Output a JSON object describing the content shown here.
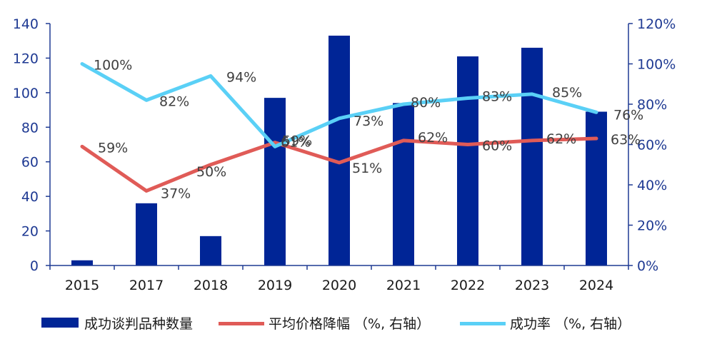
{
  "chart_data": {
    "type": "bar",
    "categories": [
      "2015",
      "2017",
      "2018",
      "2019",
      "2020",
      "2021",
      "2022",
      "2023",
      "2024"
    ],
    "series": [
      {
        "name": "成功谈判品种数量",
        "type": "bar",
        "axis": "left",
        "values": [
          3,
          36,
          17,
          97,
          133,
          94,
          121,
          126,
          89
        ]
      },
      {
        "name": "平均价格降幅 （%, 右轴）",
        "type": "line",
        "axis": "right",
        "values": [
          59,
          37,
          50,
          61,
          51,
          62,
          60,
          62,
          63
        ],
        "labels": [
          "59%",
          "37%",
          "50%",
          "61%",
          "51%",
          "62%",
          "60%",
          "62%",
          "63%"
        ]
      },
      {
        "name": "成功率 （%, 右轴）",
        "type": "line",
        "axis": "right",
        "values": [
          100,
          82,
          94,
          59,
          73,
          80,
          83,
          85,
          76
        ],
        "labels": [
          "100%",
          "82%",
          "94%",
          "59%",
          "73%",
          "80%",
          "83%",
          "85%",
          "76%"
        ]
      }
    ],
    "y_left": {
      "ylim": [
        0,
        140
      ],
      "ticks": [
        "0",
        "20",
        "40",
        "60",
        "80",
        "100",
        "120",
        "140"
      ]
    },
    "y_right": {
      "ylim": [
        0,
        120
      ],
      "ticks": [
        "0%",
        "20%",
        "40%",
        "60%",
        "80%",
        "100%",
        "120%"
      ]
    },
    "grid": false,
    "legend": "bottom",
    "colors": {
      "bar": "#002596",
      "price_line": "#e05b57",
      "rate_line": "#5ad0f6",
      "axis": "#1f3a93"
    }
  }
}
